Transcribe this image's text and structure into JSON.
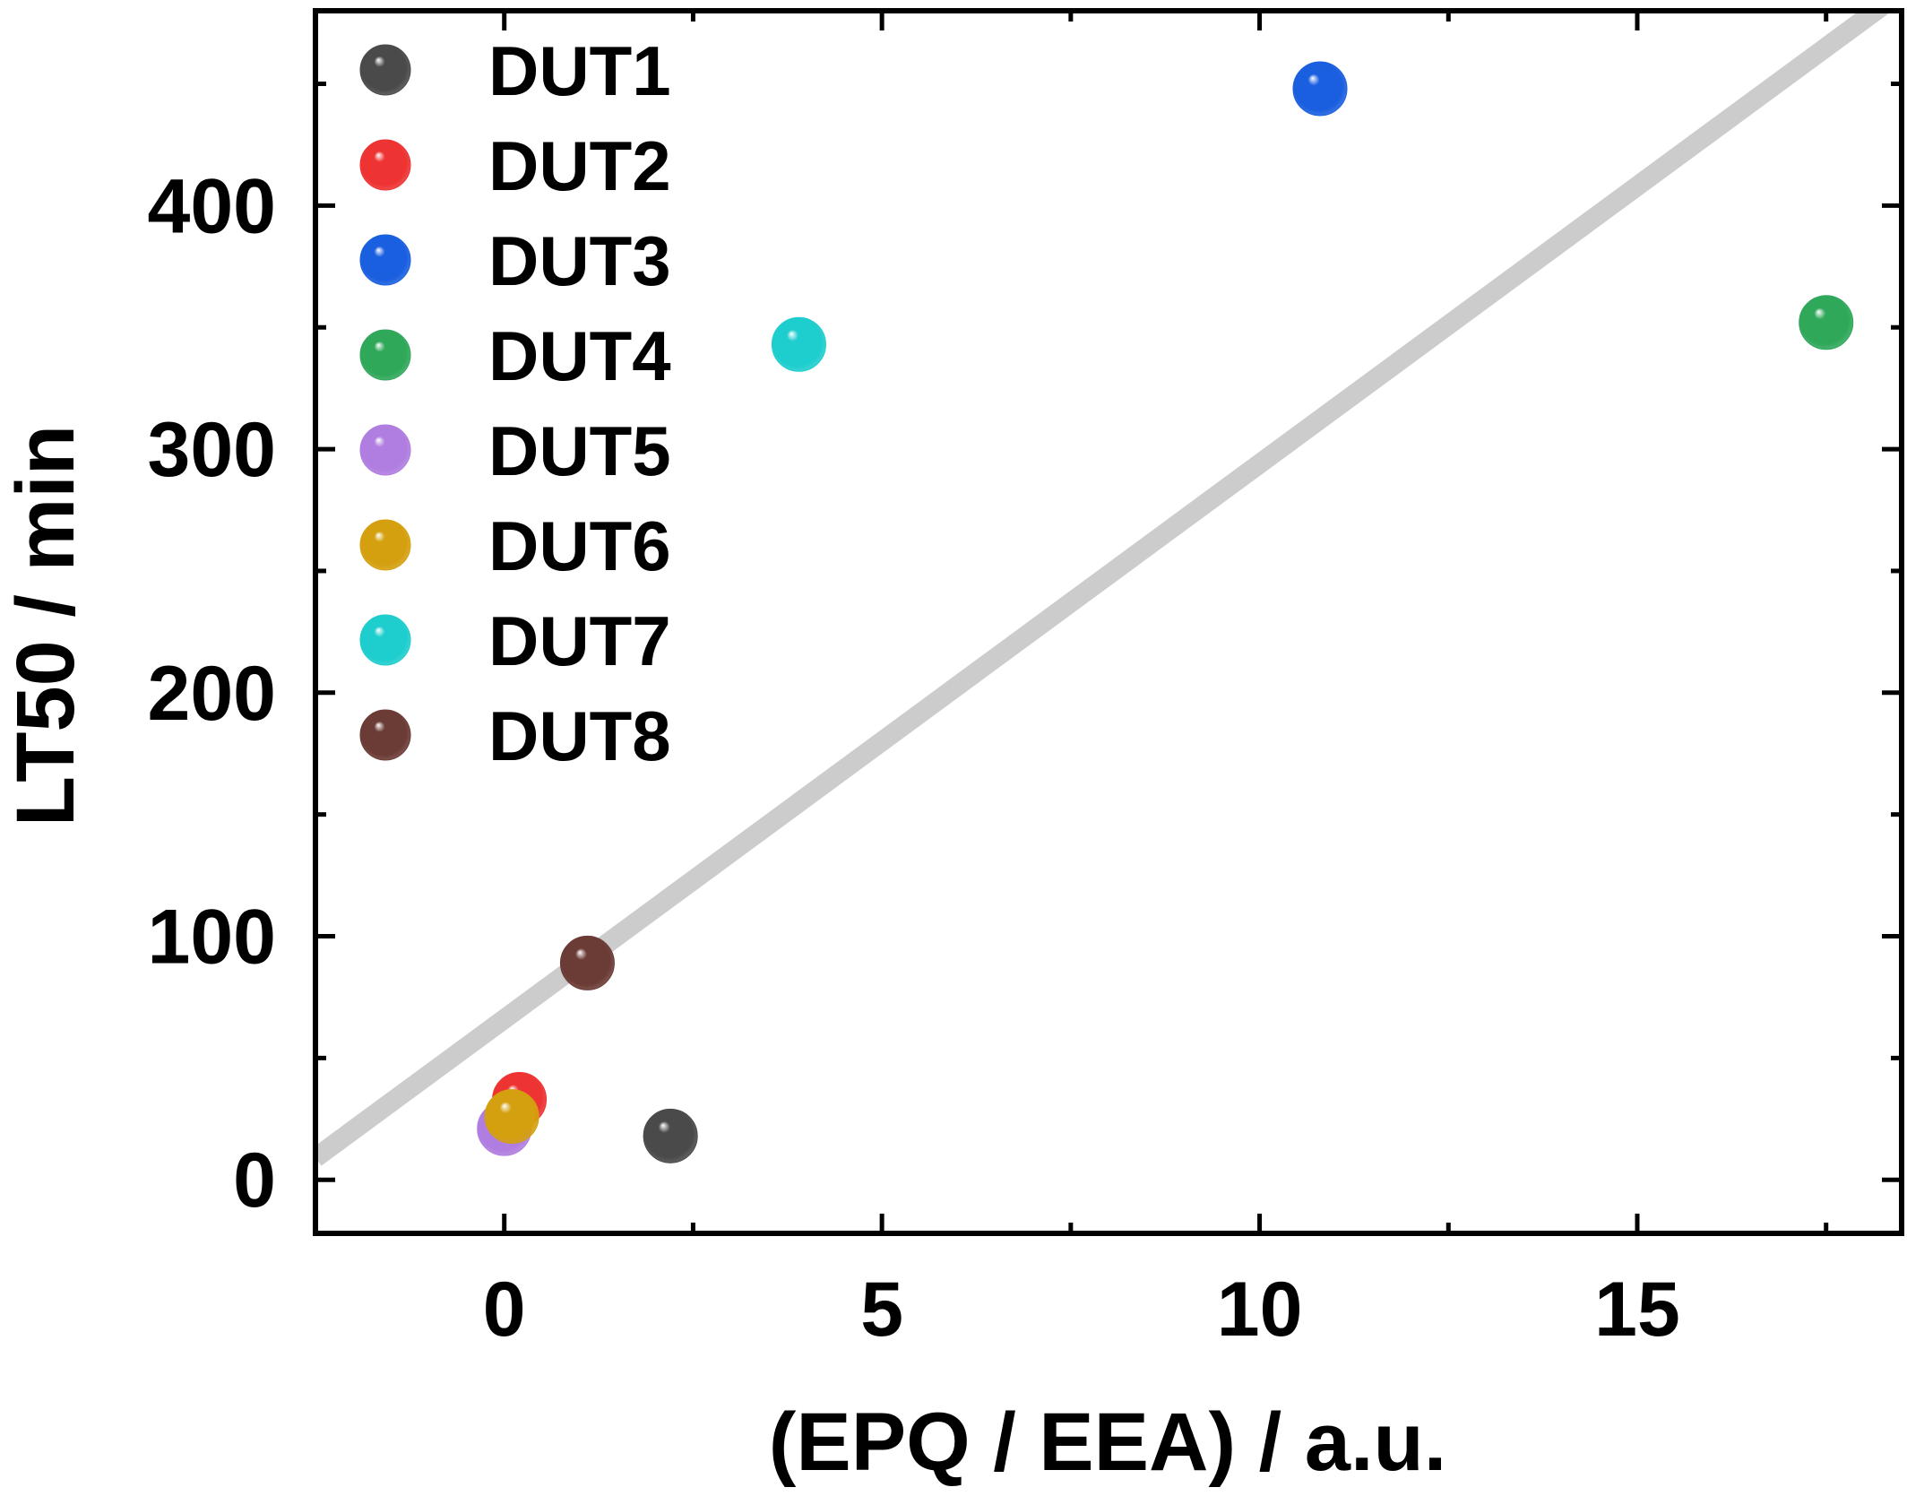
{
  "chart_data": {
    "type": "scatter",
    "title": "",
    "xlabel": "(EPQ / EEA) / a.u.",
    "ylabel": "LT50 / min",
    "xlim": [
      -2.5,
      18.5
    ],
    "ylim": [
      -22,
      480
    ],
    "x_ticks": [
      0,
      5,
      10,
      15
    ],
    "x_tick_labels": [
      "0",
      "5",
      "10",
      "15"
    ],
    "y_ticks": [
      0,
      100,
      200,
      300,
      400
    ],
    "y_tick_labels": [
      "0",
      "100",
      "200",
      "300",
      "400"
    ],
    "grid": false,
    "legend_position": "top-left",
    "marker": "sphere",
    "series": [
      {
        "name": "DUT1",
        "color": "#4a4a4a",
        "points": [
          {
            "x": 2.2,
            "y": 18
          }
        ]
      },
      {
        "name": "DUT2",
        "color": "#ee3333",
        "points": [
          {
            "x": 0.2,
            "y": 33
          }
        ]
      },
      {
        "name": "DUT3",
        "color": "#1a5fe0",
        "points": [
          {
            "x": 10.8,
            "y": 448
          }
        ]
      },
      {
        "name": "DUT4",
        "color": "#2fa85a",
        "points": [
          {
            "x": 17.5,
            "y": 352
          }
        ]
      },
      {
        "name": "DUT5",
        "color": "#b07de0",
        "points": [
          {
            "x": 0.0,
            "y": 21
          }
        ]
      },
      {
        "name": "DUT6",
        "color": "#d4a010",
        "points": [
          {
            "x": 0.1,
            "y": 26
          }
        ]
      },
      {
        "name": "DUT7",
        "color": "#1ecdcd",
        "points": [
          {
            "x": 3.9,
            "y": 343
          }
        ]
      },
      {
        "name": "DUT8",
        "color": "#6b3b35",
        "points": [
          {
            "x": 1.1,
            "y": 89
          }
        ]
      }
    ],
    "trend_line": {
      "color": "#cccccc",
      "intercept": 66,
      "slope": 22.8
    }
  }
}
